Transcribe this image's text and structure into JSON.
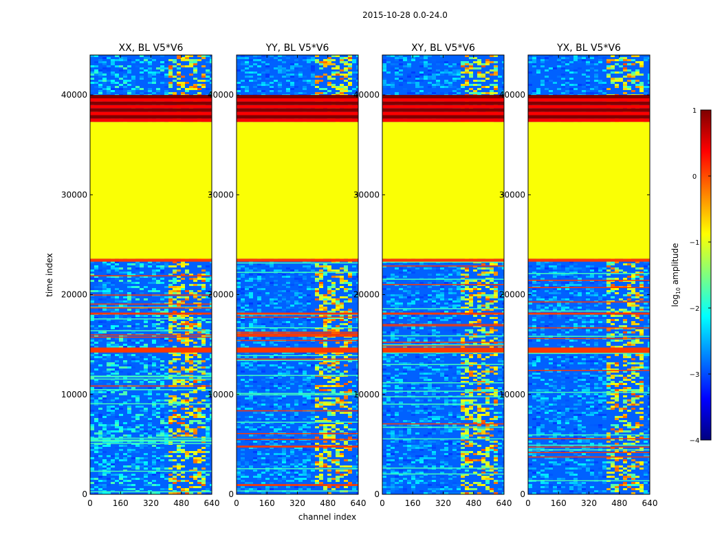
{
  "figure": {
    "suptitle": "2015-10-28 0.0-24.0",
    "xlabel": "channel index",
    "ylabel": "time index"
  },
  "chart_data": {
    "type": "heatmap",
    "x_ticks": [
      0,
      160,
      320,
      480,
      640
    ],
    "y_ticks": [
      0,
      10000,
      20000,
      30000,
      40000
    ],
    "xlim": [
      0,
      640
    ],
    "ylim": [
      0,
      44000
    ],
    "panels": [
      {
        "title": "XX, BL V5*V6"
      },
      {
        "title": "YY, BL V5*V6"
      },
      {
        "title": "XY, BL V5*V6"
      },
      {
        "title": "YX, BL V5*V6"
      }
    ],
    "colorbar": {
      "label_prefix": "log",
      "label_sub": "10",
      "label_suffix": " amplitude",
      "range": [
        -4,
        1
      ],
      "ticks": [
        {
          "value": 1,
          "label": "1"
        },
        {
          "value": 0,
          "label": "0"
        },
        {
          "value": -1,
          "label": "−1"
        },
        {
          "value": -2,
          "label": "−2"
        },
        {
          "value": -3,
          "label": "−3"
        },
        {
          "value": -4,
          "label": "−4"
        }
      ],
      "colors": [
        "#00007f",
        "#0000ff",
        "#007fff",
        "#00ffff",
        "#7fff7f",
        "#ffff00",
        "#ff7f00",
        "#ff0000",
        "#7f0000"
      ]
    },
    "bands": [
      {
        "y0": 0,
        "y1": 23300,
        "kind": "noise"
      },
      {
        "y0": 23300,
        "y1": 23600,
        "kind": "flag",
        "value": 0.1
      },
      {
        "y0": 23600,
        "y1": 37300,
        "kind": "const",
        "value": -0.9
      },
      {
        "y0": 37300,
        "y1": 40000,
        "kind": "stripes"
      },
      {
        "y0": 40000,
        "y1": 44000,
        "kind": "noise"
      },
      {
        "y0": 14200,
        "y1": 14700,
        "kind": "flag",
        "value": 0.1
      },
      {
        "y0": 18000,
        "y1": 18200,
        "kind": "flag",
        "value": 0.1
      }
    ],
    "rfi_channel_range": [
      400,
      600
    ]
  }
}
